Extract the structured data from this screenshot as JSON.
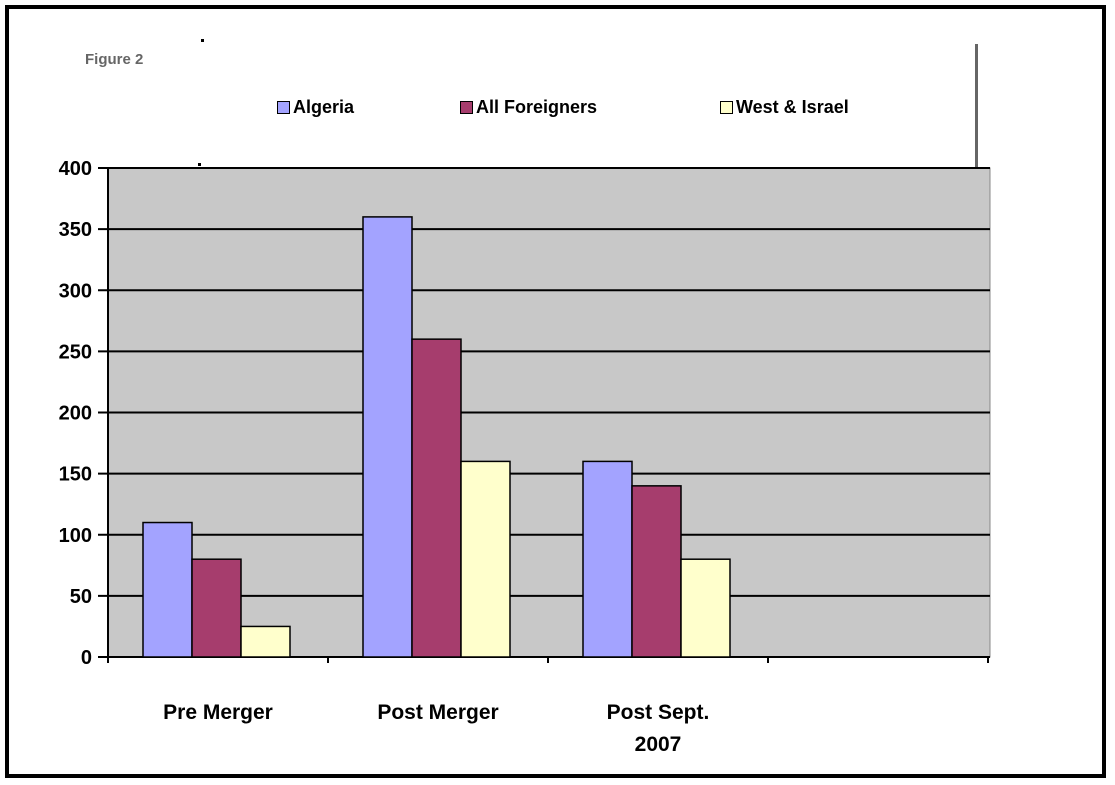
{
  "figure_label": "Figure 2",
  "chart_data": {
    "type": "bar",
    "categories": [
      "Pre Merger",
      "Post Merger",
      "Post Sept. 2007"
    ],
    "category_lines": [
      [
        "Pre Merger"
      ],
      [
        "Post Merger"
      ],
      [
        "Post Sept.",
        "2007"
      ]
    ],
    "series": [
      {
        "name": "Algeria",
        "values": [
          110,
          360,
          160
        ],
        "color": "#a3a3ff"
      },
      {
        "name": "All Foreigners",
        "values": [
          80,
          260,
          140
        ],
        "color": "#a63d6d"
      },
      {
        "name": "West & Israel",
        "values": [
          25,
          160,
          80
        ],
        "color": "#ffffcc"
      }
    ],
    "yticks": [
      0,
      50,
      100,
      150,
      200,
      250,
      300,
      350,
      400
    ],
    "ylim": [
      0,
      400
    ],
    "grid": true,
    "plot_background": "#c8c8c8",
    "legend_position": "top"
  }
}
